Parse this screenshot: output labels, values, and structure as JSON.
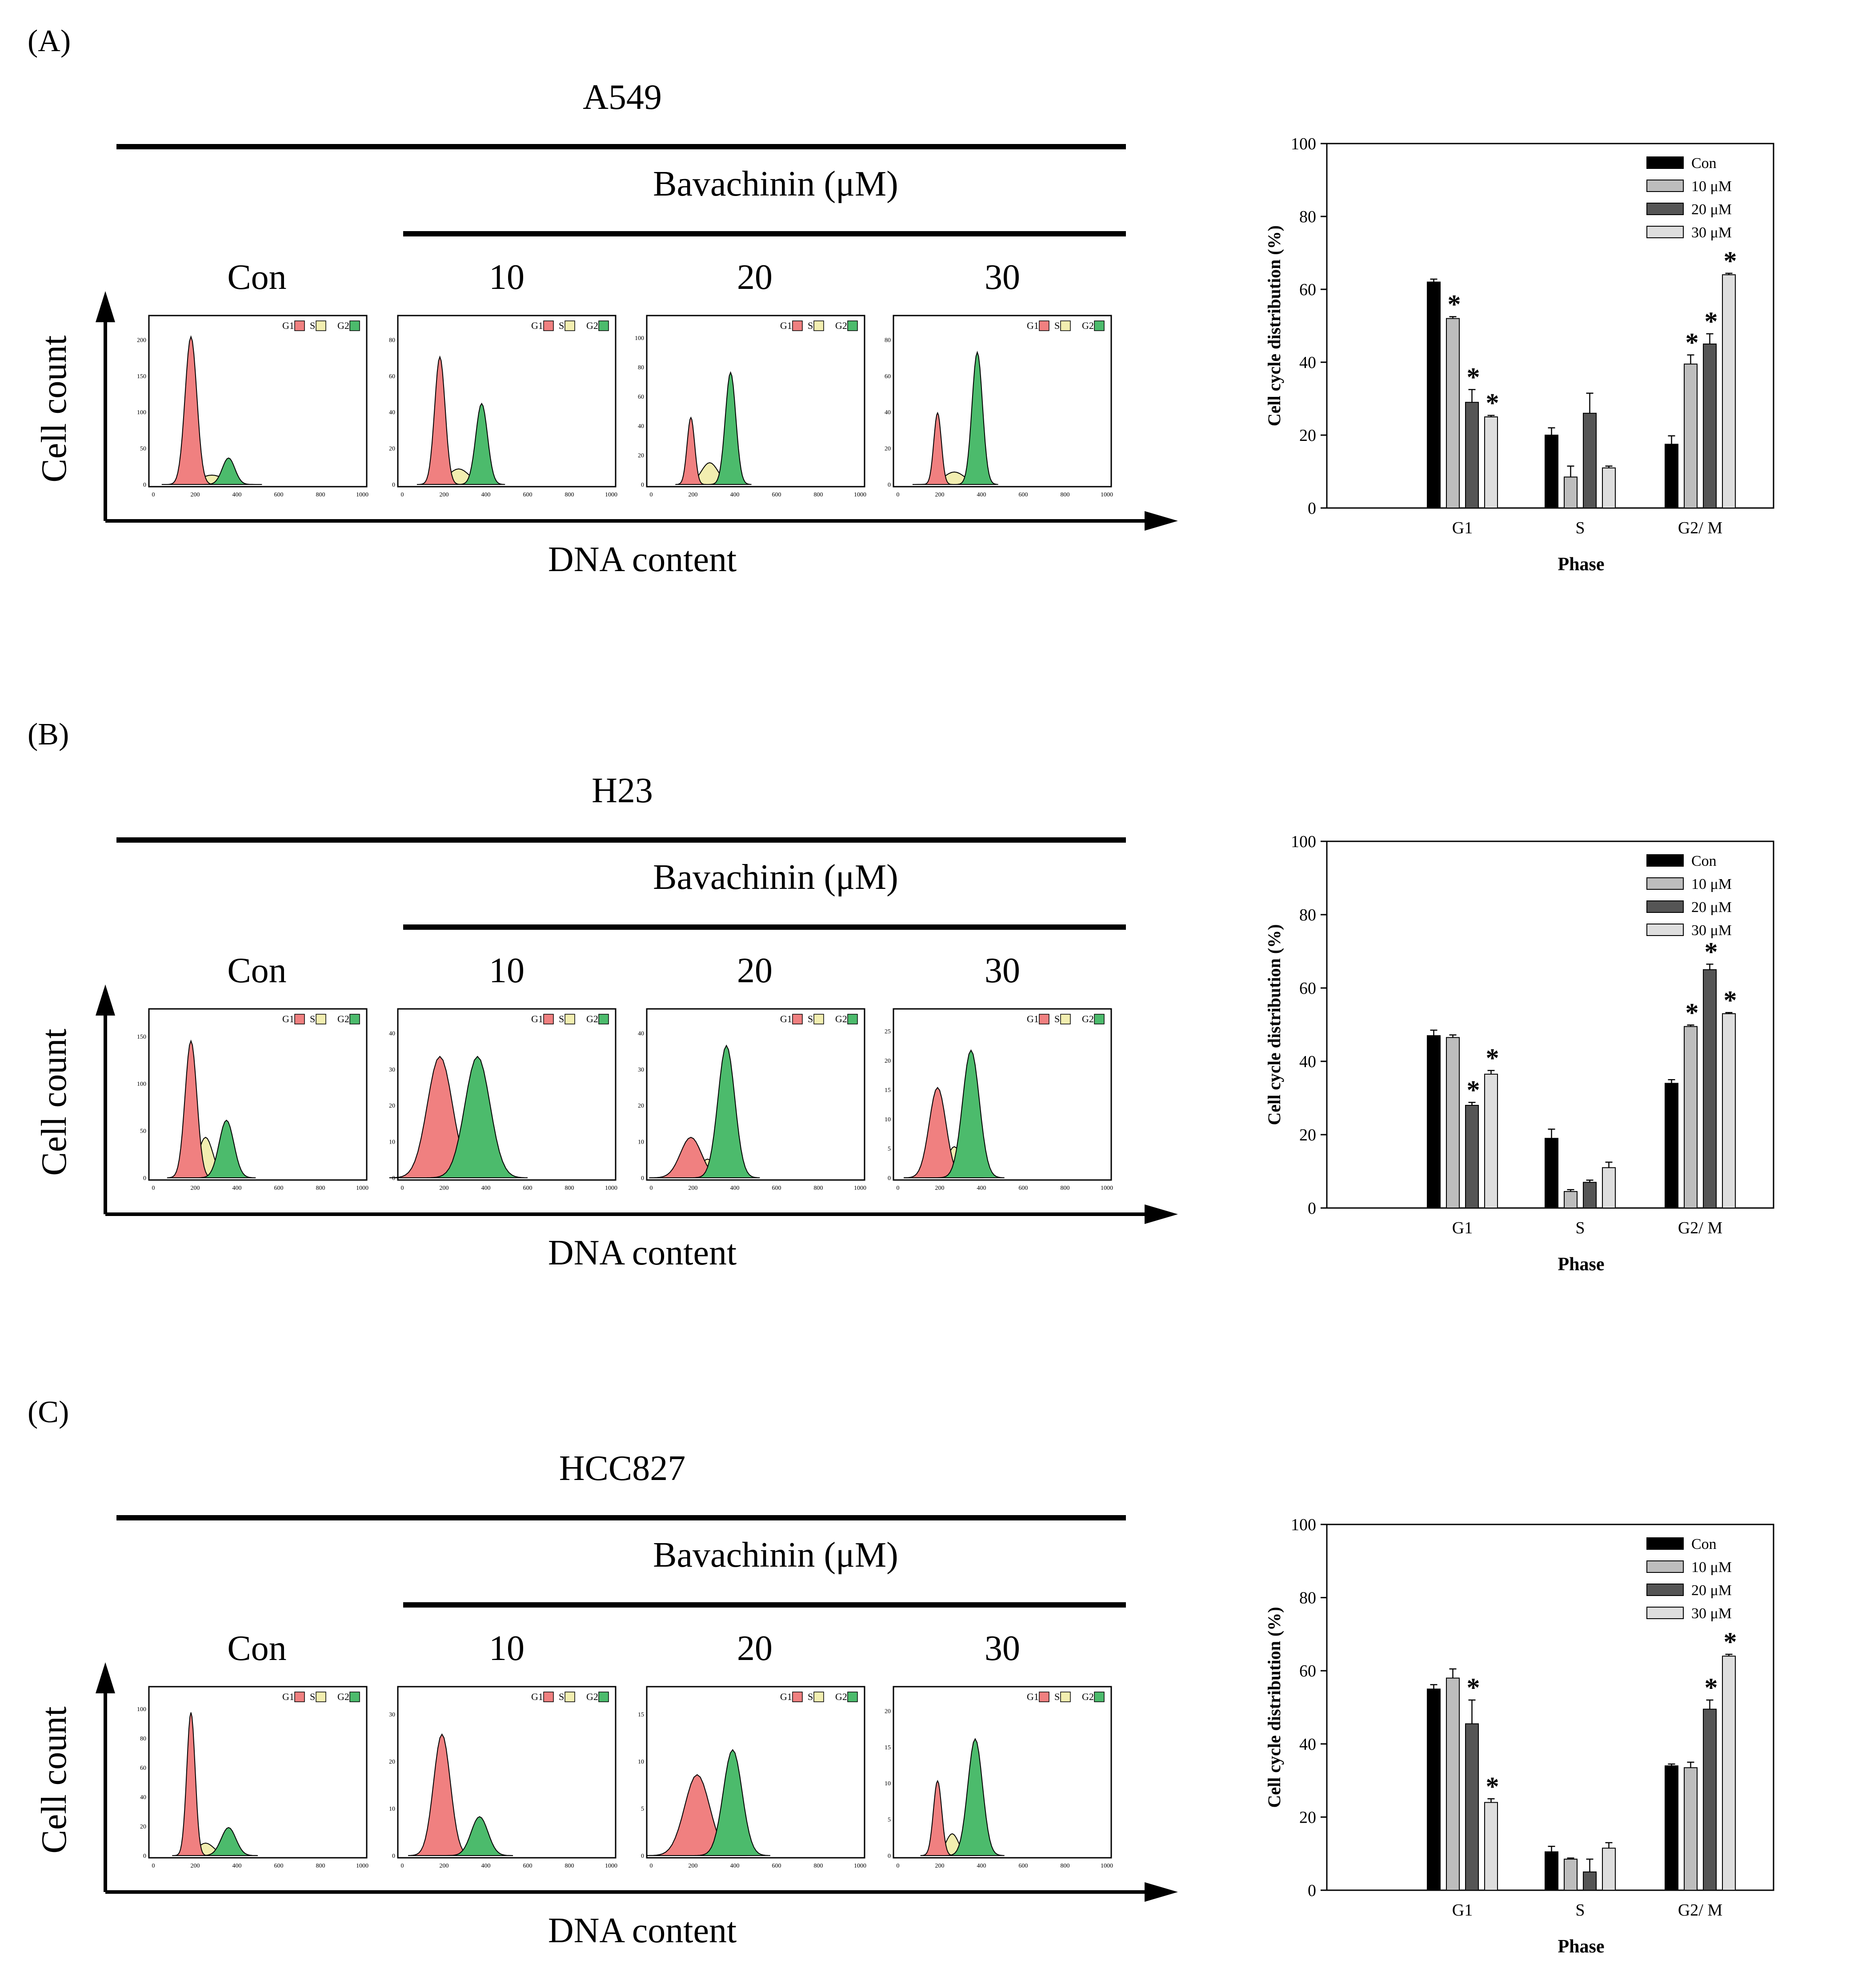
{
  "figure": {
    "flow_histogram_text": {
      "legend_labels": [
        "G1",
        "S",
        "G2"
      ],
      "x_ticks": [
        "0",
        "200",
        "400",
        "600",
        "800",
        "1000"
      ]
    },
    "colors": {
      "g1": "#f08080",
      "s": "#f2eeb0",
      "g2": "#4cbb6c",
      "outline": "#000000",
      "trace": "#808080"
    },
    "panels": [
      {
        "label": "(A)",
        "cell_line": "A549",
        "treatment_header": "Bavachinin (μM)",
        "condition_labels": [
          "Con",
          "10",
          "20",
          "30"
        ],
        "y_axis_label": "Cell count",
        "x_axis_label": "DNA content",
        "histograms": [
          {
            "y_ticks": [
              "0",
              "50",
              "100",
              "150",
              "200"
            ]
          },
          {
            "y_ticks": [
              "0",
              "20",
              "40",
              "60",
              "80"
            ]
          },
          {
            "y_ticks": [
              "0",
              "20",
              "40",
              "60",
              "80",
              "100"
            ]
          },
          {
            "y_ticks": [
              "0",
              "20",
              "40",
              "60",
              "80"
            ]
          }
        ]
      },
      {
        "label": "(B)",
        "cell_line": "H23",
        "treatment_header": "Bavachinin (μM)",
        "condition_labels": [
          "Con",
          "10",
          "20",
          "30"
        ],
        "y_axis_label": "Cell count",
        "x_axis_label": "DNA content",
        "histograms": [
          {
            "y_ticks": [
              "0",
              "50",
              "100",
              "150"
            ]
          },
          {
            "y_ticks": [
              "0",
              "10",
              "20",
              "30",
              "40"
            ]
          },
          {
            "y_ticks": [
              "0",
              "10",
              "20",
              "30",
              "40"
            ]
          },
          {
            "y_ticks": [
              "0",
              "5",
              "10",
              "15",
              "20",
              "25"
            ]
          }
        ]
      },
      {
        "label": "(C)",
        "cell_line": "HCC827",
        "treatment_header": "Bavachinin (μM)",
        "condition_labels": [
          "Con",
          "10",
          "20",
          "30"
        ],
        "y_axis_label": "Cell count",
        "x_axis_label": "DNA content",
        "histograms": [
          {
            "y_ticks": [
              "0",
              "20",
              "40",
              "60",
              "80",
              "100"
            ]
          },
          {
            "y_ticks": [
              "0",
              "10",
              "20",
              "30"
            ]
          },
          {
            "y_ticks": [
              "0",
              "5",
              "10",
              "15"
            ]
          },
          {
            "y_ticks": [
              "0",
              "5",
              "10",
              "15",
              "20"
            ]
          }
        ]
      }
    ]
  },
  "chart_data": [
    {
      "type": "bar",
      "title": "",
      "xlabel": "Phase",
      "ylabel": "Cell cycle distribution (%)",
      "ylim": [
        0,
        100
      ],
      "yticks": [
        0,
        20,
        40,
        60,
        80,
        100
      ],
      "categories": [
        "G1",
        "S",
        "G2/ M"
      ],
      "legend_position": "top-right",
      "series": [
        {
          "name": "Con",
          "color": "#000000",
          "values": [
            62,
            20,
            17.5
          ],
          "errors": [
            0.8,
            2,
            2.3
          ],
          "significant": [
            false,
            false,
            false
          ]
        },
        {
          "name": "10 μM",
          "color": "#bdbdbd",
          "values": [
            52,
            8.5,
            39.5
          ],
          "errors": [
            0.5,
            3,
            2.5
          ],
          "significant": [
            true,
            false,
            true
          ]
        },
        {
          "name": "20 μM",
          "color": "#555555",
          "values": [
            29,
            26,
            45
          ],
          "errors": [
            3.5,
            5.5,
            2.8
          ],
          "significant": [
            true,
            false,
            true
          ]
        },
        {
          "name": "30 μM",
          "color": "#dedede",
          "values": [
            25,
            11,
            64
          ],
          "errors": [
            0.4,
            0.5,
            0.4
          ],
          "significant": [
            true,
            false,
            true
          ]
        }
      ]
    },
    {
      "type": "bar",
      "title": "",
      "xlabel": "Phase",
      "ylabel": "Cell cycle distribution (%)",
      "ylim": [
        0,
        100
      ],
      "yticks": [
        0,
        20,
        40,
        60,
        80,
        100
      ],
      "categories": [
        "G1",
        "S",
        "G2/ M"
      ],
      "legend_position": "top-right",
      "series": [
        {
          "name": "Con",
          "color": "#000000",
          "values": [
            47,
            19,
            34
          ],
          "errors": [
            1.5,
            2.5,
            1
          ],
          "significant": [
            false,
            false,
            false
          ]
        },
        {
          "name": "10 μM",
          "color": "#bdbdbd",
          "values": [
            46.5,
            4.5,
            49.5
          ],
          "errors": [
            0.7,
            0.5,
            0.4
          ],
          "significant": [
            false,
            false,
            true
          ]
        },
        {
          "name": "20 μM",
          "color": "#555555",
          "values": [
            28,
            7,
            65
          ],
          "errors": [
            0.8,
            0.6,
            1.5
          ],
          "significant": [
            true,
            false,
            true
          ]
        },
        {
          "name": "30 μM",
          "color": "#dedede",
          "values": [
            36.5,
            11,
            53
          ],
          "errors": [
            1,
            1.5,
            0.3
          ],
          "significant": [
            true,
            false,
            true
          ]
        }
      ]
    },
    {
      "type": "bar",
      "title": "",
      "xlabel": "Phase",
      "ylabel": "Cell cycle distribution (%)",
      "ylim": [
        0,
        100
      ],
      "yticks": [
        0,
        20,
        40,
        60,
        80,
        100
      ],
      "categories": [
        "G1",
        "S",
        "G2/ M"
      ],
      "legend_position": "top-right",
      "series": [
        {
          "name": "Con",
          "color": "#000000",
          "values": [
            55,
            10.5,
            34
          ],
          "errors": [
            1.2,
            1.5,
            0.5
          ],
          "significant": [
            false,
            false,
            false
          ]
        },
        {
          "name": "10 μM",
          "color": "#bdbdbd",
          "values": [
            58,
            8.5,
            33.5
          ],
          "errors": [
            2.5,
            0.3,
            1.5
          ],
          "significant": [
            false,
            false,
            false
          ]
        },
        {
          "name": "20 μM",
          "color": "#555555",
          "values": [
            45.5,
            5,
            49.5
          ],
          "errors": [
            6.5,
            3.5,
            2.5
          ],
          "significant": [
            true,
            false,
            true
          ]
        },
        {
          "name": "30 μM",
          "color": "#dedede",
          "values": [
            24,
            11.5,
            64
          ],
          "errors": [
            1,
            1.5,
            0.5
          ],
          "significant": [
            true,
            false,
            true
          ]
        }
      ]
    }
  ]
}
